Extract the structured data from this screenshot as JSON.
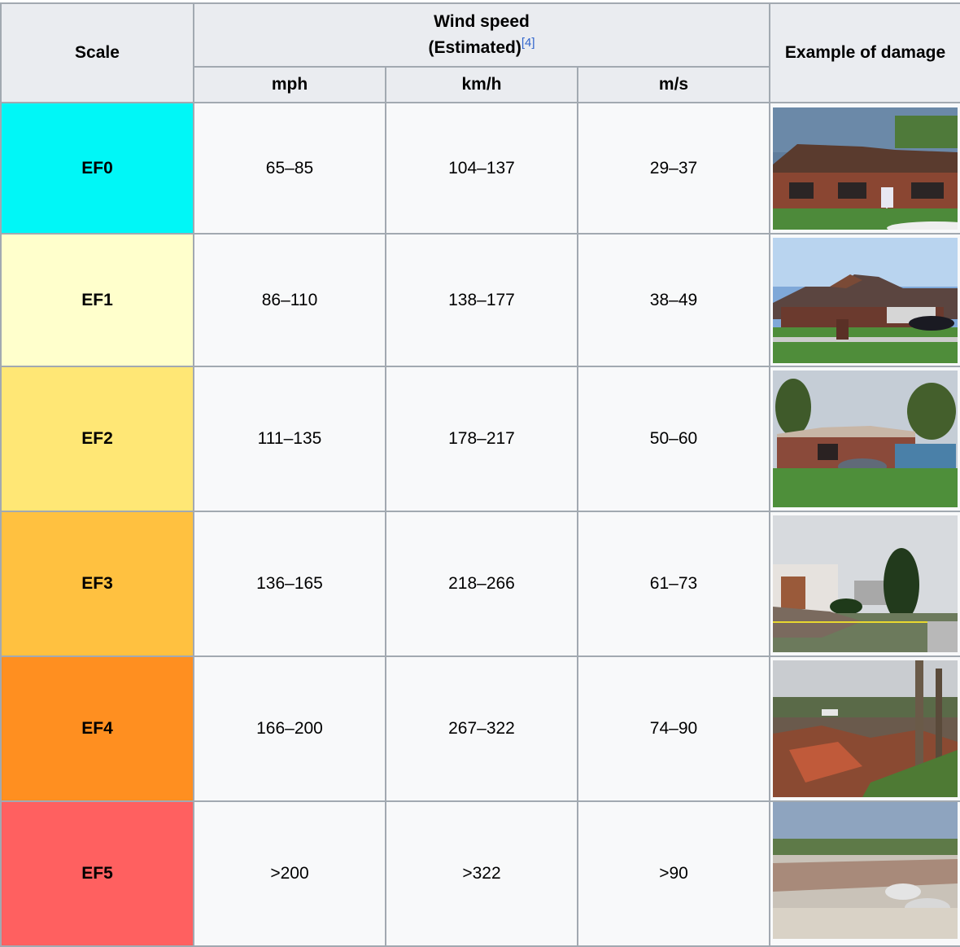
{
  "header": {
    "scale": "Scale",
    "wind_speed_line1": "Wind speed",
    "wind_speed_line2": "(Estimated)",
    "ref": "[4]",
    "damage": "Example of damage",
    "units": [
      "mph",
      "km/h",
      "m/s"
    ]
  },
  "rows": [
    {
      "scale": "EF0",
      "color": "#00f7f7",
      "mph": "65–85",
      "kmh": "104–137",
      "ms": "29–37",
      "photo": "minor-roof-damage-photo"
    },
    {
      "scale": "EF1",
      "color": "#ffffcc",
      "mph": "86–110",
      "kmh": "138–177",
      "ms": "38–49",
      "photo": "roof-torn-house-photo"
    },
    {
      "scale": "EF2",
      "color": "#ffe775",
      "mph": "111–135",
      "kmh": "178–217",
      "ms": "50–60",
      "photo": "roof-removed-house-photo"
    },
    {
      "scale": "EF3",
      "color": "#ffc140",
      "mph": "136–165",
      "kmh": "218–266",
      "ms": "61–73",
      "photo": "walls-collapsed-house-photo"
    },
    {
      "scale": "EF4",
      "color": "#ff8f20",
      "mph": "166–200",
      "kmh": "267–322",
      "ms": "74–90",
      "photo": "leveled-house-photo"
    },
    {
      "scale": "EF5",
      "color": "#ff6060",
      "mph": ">200",
      "kmh": ">322",
      "ms": ">90",
      "photo": "swept-away-foundation-photo"
    }
  ]
}
